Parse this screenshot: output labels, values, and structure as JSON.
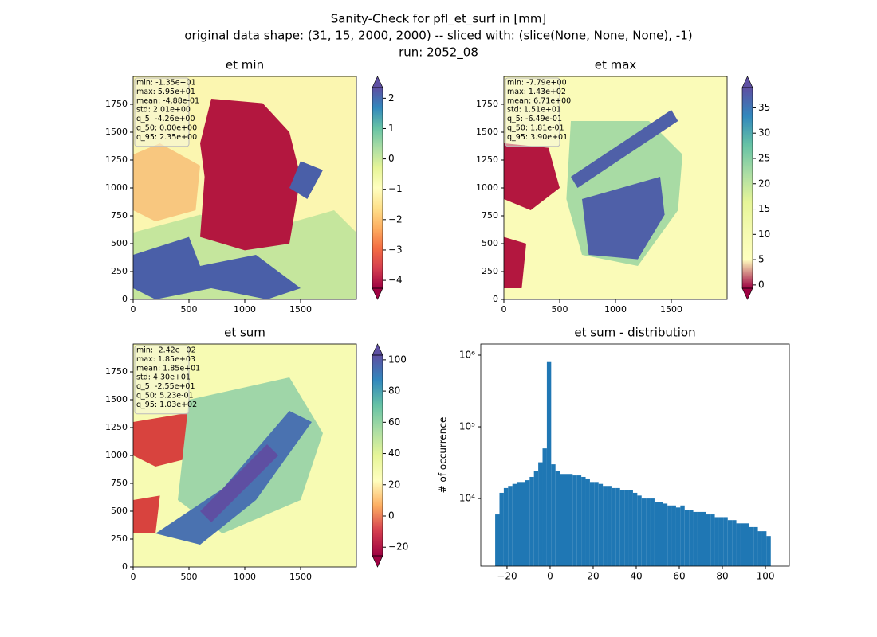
{
  "suptitle": [
    "Sanity-Check for pfl_et_surf in [mm]",
    "original data shape: (31, 15, 2000, 2000) -- sliced with: (slice(None, None, None), -1)",
    "run: 2052_08"
  ],
  "chart_data": [
    {
      "type": "heatmap",
      "title": "et min",
      "xlim": [
        0,
        2000
      ],
      "ylim": [
        0,
        2000
      ],
      "xticks": [
        0,
        500,
        1000,
        1500
      ],
      "yticks": [
        0,
        250,
        500,
        750,
        1000,
        1250,
        1500,
        1750
      ],
      "stats": [
        "min: -1.35e+01",
        "max: 5.95e+01",
        "mean: -4.88e-01",
        "std: 2.01e+00",
        "q_5: -4.26e+00",
        "q_50: 0.00e+00",
        "q_95: 2.35e+00"
      ],
      "clim": [
        -4.26,
        2.35
      ],
      "cticks": [
        {
          "value": -4,
          "label": "−4"
        },
        {
          "value": -3,
          "label": "−3"
        },
        {
          "value": -2,
          "label": "−2"
        },
        {
          "value": -1,
          "label": "−1"
        },
        0,
        1,
        2
      ],
      "extend": "both",
      "colormap": [
        "#9e0142",
        "#d53e4f",
        "#f46d43",
        "#fdae61",
        "#fee08b",
        "#ffffbf",
        "#e6f598",
        "#abdda4",
        "#66c2a5",
        "#3288bd",
        "#5e4fa2"
      ]
    },
    {
      "type": "heatmap",
      "title": "et max",
      "xlim": [
        0,
        2000
      ],
      "ylim": [
        0,
        2000
      ],
      "xticks": [
        0,
        500,
        1000,
        1500
      ],
      "yticks": [
        0,
        250,
        500,
        750,
        1000,
        1250,
        1500,
        1750
      ],
      "stats": [
        "min: -7.79e+00",
        "max: 1.43e+02",
        "mean: 6.71e+00",
        "std: 1.51e+01",
        "q_5: -6.49e-01",
        "q_50: 1.81e-01",
        "q_95: 3.90e+01"
      ],
      "clim": [
        -0.649,
        39.0
      ],
      "cticks": [
        0,
        5,
        10,
        15,
        20,
        25,
        30,
        35
      ],
      "extend": "both",
      "colormap": [
        "#9e0142",
        "#ffffbf",
        "#f4fab0",
        "#e6f598",
        "#abdda4",
        "#66c2a5",
        "#3288bd",
        "#5e4fa2"
      ]
    },
    {
      "type": "heatmap",
      "title": "et sum",
      "xlim": [
        0,
        2000
      ],
      "ylim": [
        0,
        2000
      ],
      "xticks": [
        0,
        500,
        1000,
        1500
      ],
      "yticks": [
        0,
        250,
        500,
        750,
        1000,
        1250,
        1500,
        1750
      ],
      "stats": [
        "min: -2.42e+02",
        "max: 1.85e+03",
        "mean: 1.85e+01",
        "std: 4.30e+01",
        "q_5: -2.55e+01",
        "q_50: 5.23e-01",
        "q_95: 1.03e+02"
      ],
      "clim": [
        -25.5,
        103
      ],
      "cticks": [
        {
          "value": -20,
          "label": "−20"
        },
        0,
        20,
        40,
        60,
        80,
        100
      ],
      "extend": "both",
      "colormap": [
        "#9e0142",
        "#d53e4f",
        "#fdae61",
        "#ffffbf",
        "#e6f598",
        "#abdda4",
        "#66c2a5",
        "#3288bd",
        "#5e4fa2"
      ]
    },
    {
      "type": "histogram",
      "title": "et sum - distribution",
      "ylabel": "# of occurrence",
      "color": "#1f77b4",
      "log_y": true,
      "xlim": [
        -32.2,
        111.1
      ],
      "ylim": [
        1140,
        1430000
      ],
      "xticks": [
        {
          "value": -20,
          "label": "−20"
        },
        0,
        20,
        40,
        60,
        80,
        100
      ],
      "yticks": [
        {
          "value": 10000,
          "label": "10⁴"
        },
        {
          "value": 100000,
          "label": "10⁵"
        },
        {
          "value": 1000000,
          "label": "10⁶"
        }
      ],
      "bins": [
        -25.5,
        -23.5,
        -21.5,
        -19.5,
        -17.5,
        -15.5,
        -13.5,
        -11.5,
        -9.5,
        -7.5,
        -5.5,
        -3.5,
        -1.5,
        0.5,
        2.5,
        4.5,
        6.5,
        8.5,
        10.5,
        12.5,
        14.5,
        16.5,
        18.5,
        20.5,
        22.5,
        24.5,
        26.5,
        28.5,
        30.5,
        32.5,
        34.5,
        36.5,
        38.5,
        40.5,
        42.5,
        44.5,
        46.5,
        48.5,
        50.5,
        52.5,
        54.5,
        56.5,
        58.5,
        60.5,
        62.5,
        64.5,
        66.5,
        68.5,
        70.5,
        72.5,
        74.5,
        76.5,
        78.5,
        80.5,
        82.5,
        84.5,
        86.5,
        88.5,
        90.5,
        92.5,
        94.5,
        96.5,
        98.5,
        100.5,
        102.5
      ],
      "counts": [
        6000,
        12000,
        14000,
        15000,
        16000,
        17000,
        17000,
        18000,
        20000,
        24000,
        32000,
        50000,
        800000,
        30000,
        24000,
        22000,
        22000,
        22000,
        21000,
        21000,
        20000,
        19000,
        17000,
        17000,
        16000,
        15000,
        15000,
        14000,
        14000,
        13000,
        13000,
        13000,
        12000,
        11000,
        10000,
        10000,
        10000,
        9000,
        9000,
        8500,
        8000,
        8000,
        7500,
        8000,
        7000,
        7000,
        6500,
        6500,
        6500,
        6000,
        6000,
        5500,
        5500,
        5500,
        5000,
        5000,
        4500,
        4500,
        4500,
        4000,
        4000,
        3500,
        3500,
        3000
      ]
    }
  ]
}
